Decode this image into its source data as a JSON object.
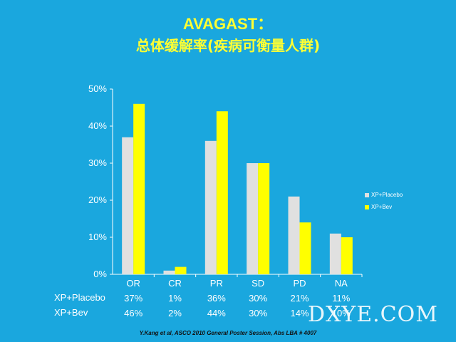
{
  "slide": {
    "title_line1": "AVAGAST：",
    "title_line2": "总体缓解率(疾病可衡量人群)",
    "citation": "Y.Kang et al, ASCO 2010 General Poster Session, Abs LBA # 4007",
    "watermark": "DXYE.COM"
  },
  "colors": {
    "background": "#1aa7de",
    "placebo": "#e0e0e0",
    "bev": "#ffff00",
    "title": "#ffff33"
  },
  "chart_data": {
    "type": "bar",
    "categories": [
      "OR",
      "CR",
      "PR",
      "SD",
      "PD",
      "NA"
    ],
    "series": [
      {
        "name": "XP+Placebo",
        "values": [
          37,
          1,
          36,
          30,
          21,
          11
        ],
        "labels": [
          "37%",
          "1%",
          "36%",
          "30%",
          "21%",
          "11%"
        ]
      },
      {
        "name": "XP+Bev",
        "values": [
          46,
          2,
          44,
          30,
          14,
          10
        ],
        "labels": [
          "46%",
          "2%",
          "44%",
          "30%",
          "14%",
          "10%"
        ]
      }
    ],
    "yticks": [
      "0%",
      "10%",
      "20%",
      "30%",
      "40%",
      "50%"
    ],
    "ylim": [
      0,
      50
    ],
    "legend_position": "right",
    "grid": false
  }
}
